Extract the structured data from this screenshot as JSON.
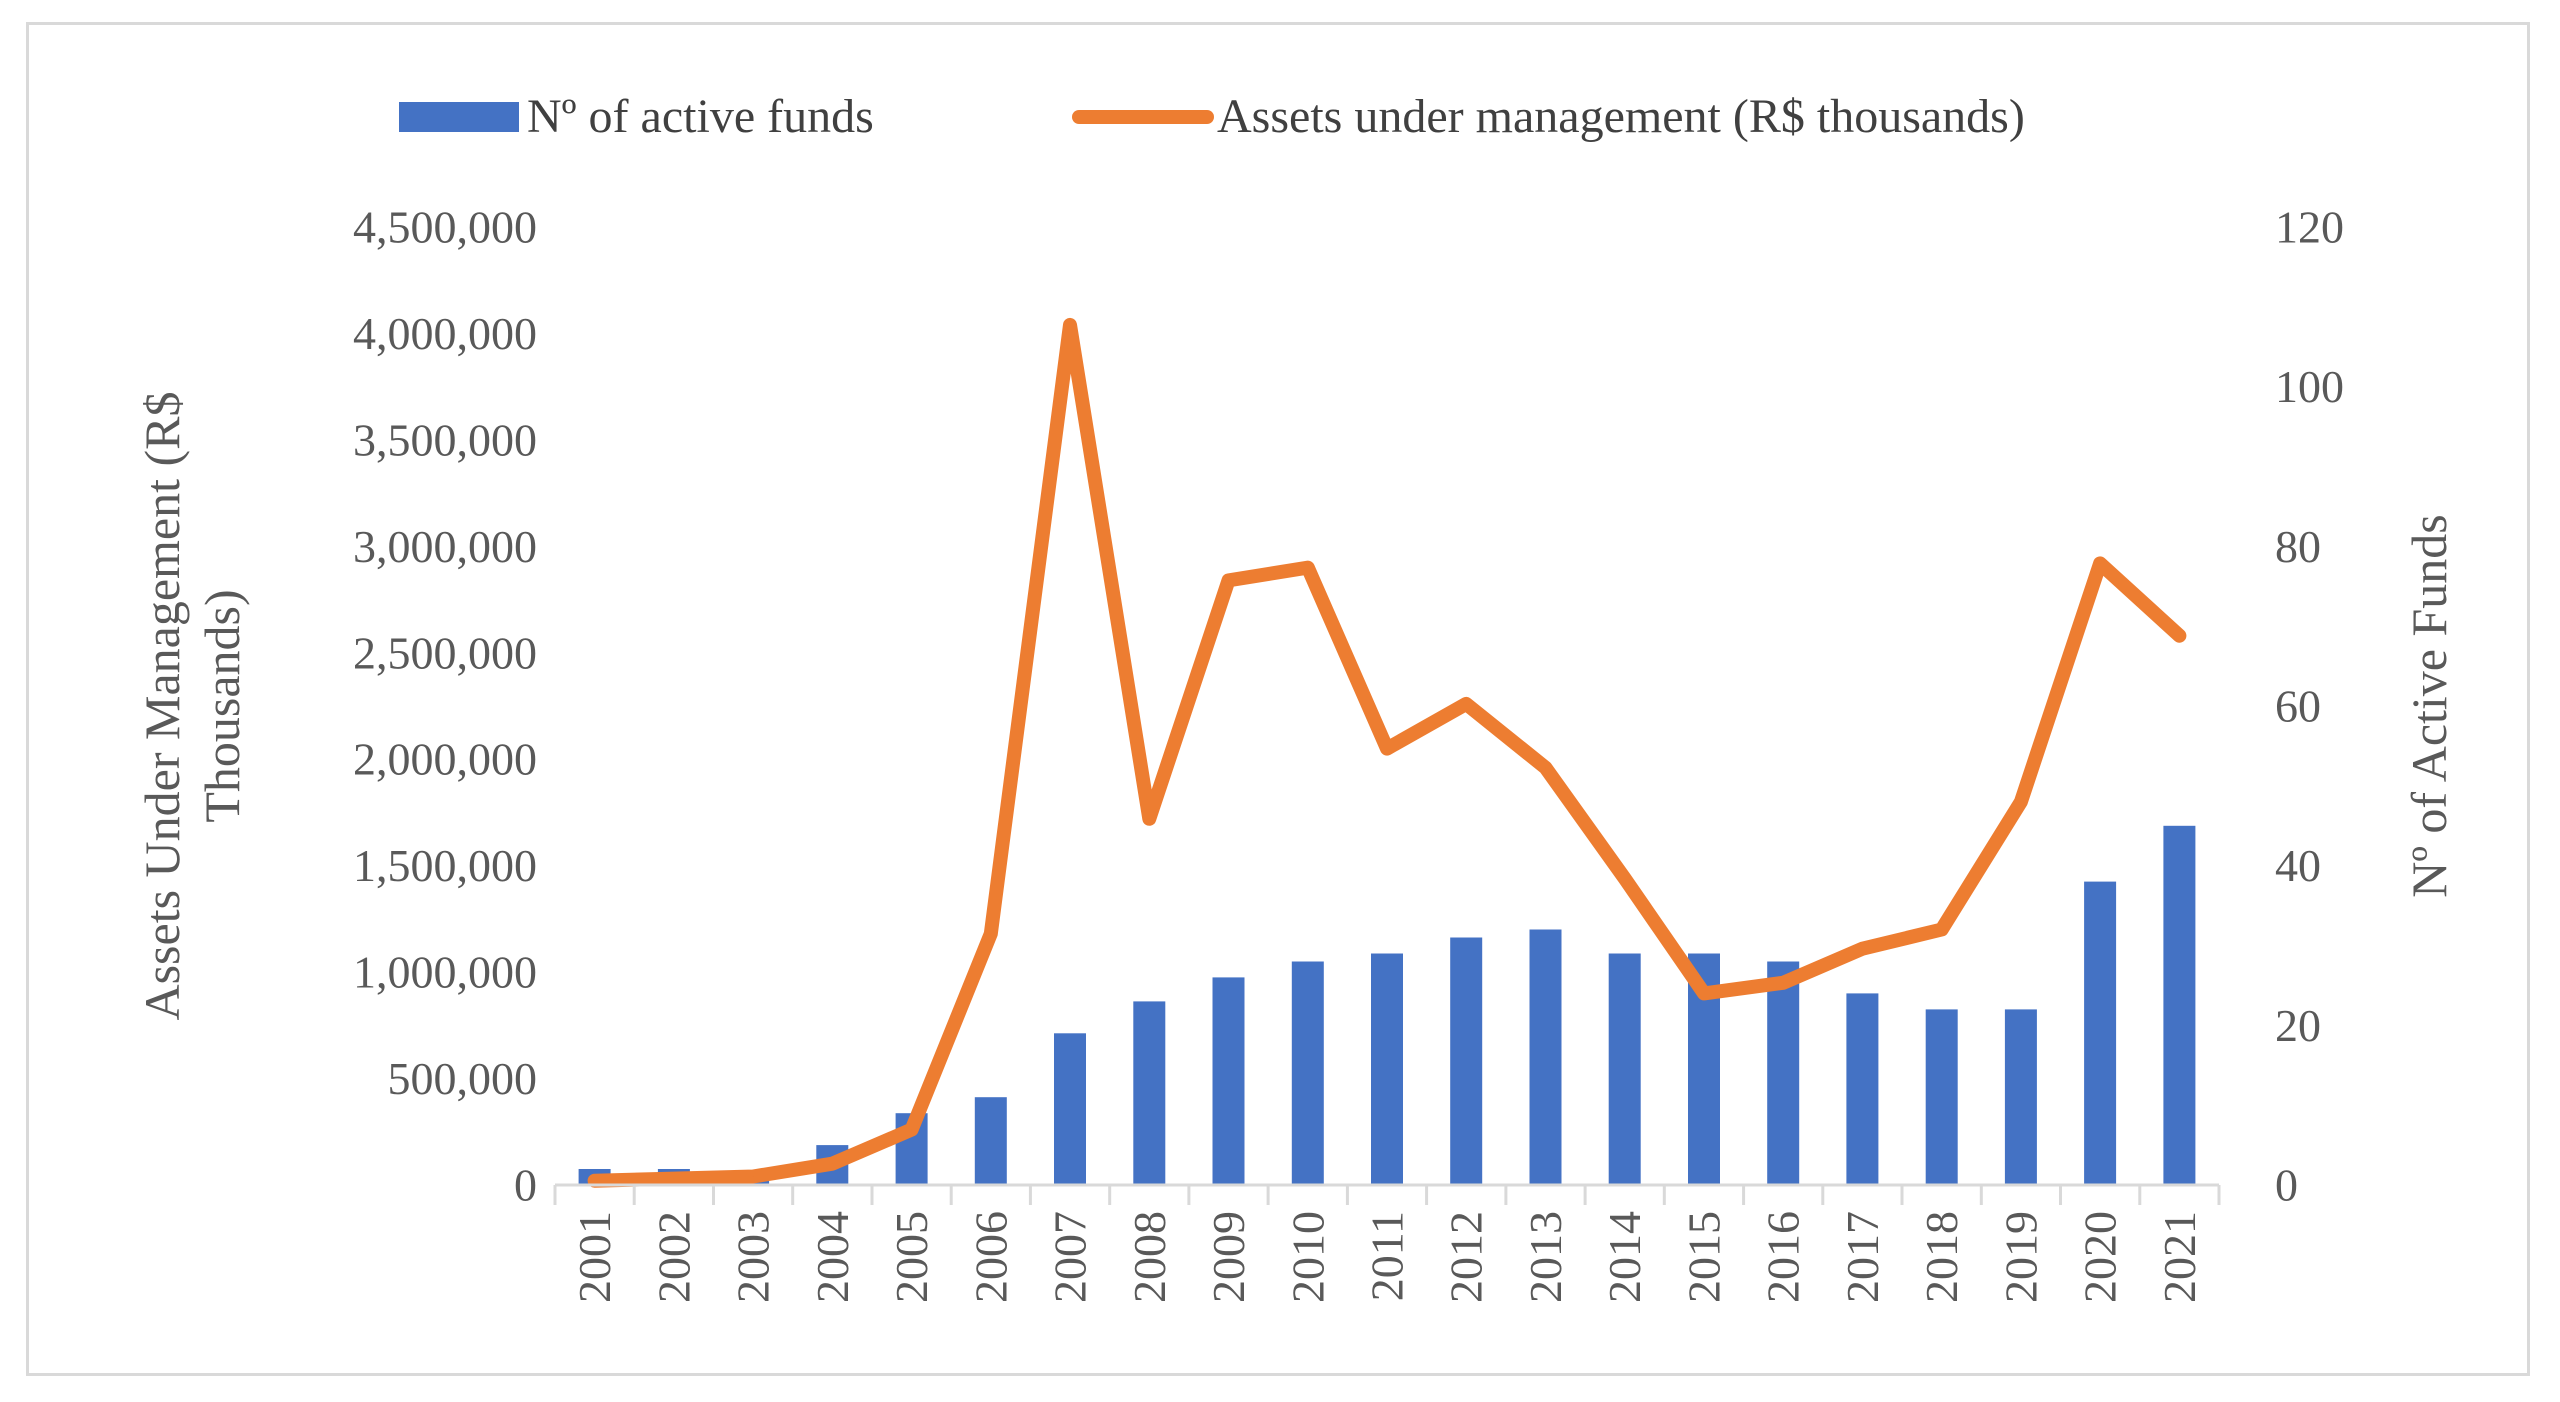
{
  "chart_data": {
    "type": "bar+line",
    "categories": [
      "2001",
      "2002",
      "2003",
      "2004",
      "2005",
      "2006",
      "2007",
      "2008",
      "2009",
      "2010",
      "2011",
      "2012",
      "2013",
      "2014",
      "2015",
      "2016",
      "2017",
      "2018",
      "2019",
      "2020",
      "2021"
    ],
    "series": [
      {
        "name": "Nº of active funds",
        "type": "bar",
        "axis": "right",
        "color": "#4472C4",
        "values": [
          2,
          2,
          1,
          5,
          9,
          11,
          19,
          23,
          26,
          28,
          29,
          31,
          32,
          29,
          29,
          28,
          24,
          22,
          22,
          38,
          45
        ]
      },
      {
        "name": "Assets under management (R$ thousands)",
        "type": "line",
        "axis": "left",
        "color": "#ED7D31",
        "values": [
          20000,
          30000,
          40000,
          100000,
          260000,
          1180000,
          4040000,
          1720000,
          2840000,
          2900000,
          2050000,
          2260000,
          1960000,
          1440000,
          900000,
          950000,
          1110000,
          1200000,
          1800000,
          2920000,
          2580000
        ]
      }
    ],
    "y_left": {
      "label": "Assets Under Management  (R$ Thousands)",
      "range": [
        0,
        4500000
      ],
      "ticks": [
        "0",
        "500,000",
        "1,000,000",
        "1,500,000",
        "2,000,000",
        "2,500,000",
        "3,000,000",
        "3,500,000",
        "4,000,000",
        "4,500,000"
      ]
    },
    "y_right": {
      "label": "Nº of Active Funds",
      "range": [
        0,
        120
      ],
      "ticks": [
        "0",
        "20",
        "40",
        "60",
        "80",
        "100",
        "120"
      ]
    },
    "legend_position": "top",
    "grid": false
  }
}
